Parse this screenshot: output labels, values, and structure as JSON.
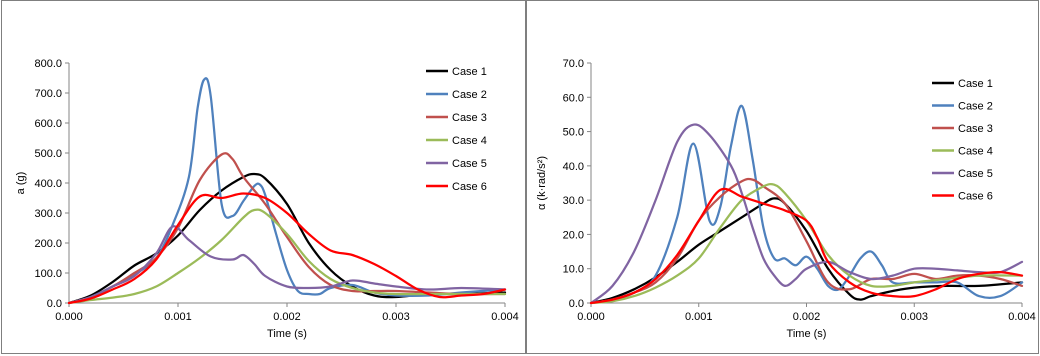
{
  "colors": {
    "Case 1": "#000000",
    "Case 2": "#4f81bd",
    "Case 3": "#c0504d",
    "Case 4": "#9bbb59",
    "Case 5": "#8064a2",
    "Case 6": "#ff0000",
    "axis": "#868686"
  },
  "chart_data": [
    {
      "type": "line",
      "title": "",
      "xlabel": "Time (s)",
      "ylabel": "a (g)",
      "xlim": [
        0,
        0.004
      ],
      "ylim": [
        0,
        800
      ],
      "xticks": [
        0,
        0.001,
        0.002,
        0.003,
        0.004
      ],
      "xtick_labels": [
        "0.000",
        "0.001",
        "0.002",
        "0.003",
        "0.004"
      ],
      "yticks": [
        0,
        100,
        200,
        300,
        400,
        500,
        600,
        700,
        800
      ],
      "ytick_labels": [
        "0.0",
        "100.0",
        "200.0",
        "300.0",
        "400.0",
        "500.0",
        "600.0",
        "700.0",
        "800.0"
      ],
      "grid": false,
      "legend": "right",
      "series": [
        {
          "name": "Case 1",
          "x": [
            0,
            0.0002,
            0.0004,
            0.0006,
            0.0008,
            0.001,
            0.0012,
            0.0014,
            0.0016,
            0.0017,
            0.0018,
            0.002,
            0.0022,
            0.0024,
            0.0026,
            0.0028,
            0.003,
            0.0033,
            0.0036,
            0.004
          ],
          "y": [
            0,
            25,
            70,
            125,
            165,
            225,
            310,
            375,
            420,
            430,
            415,
            330,
            200,
            110,
            55,
            25,
            20,
            30,
            30,
            35
          ]
        },
        {
          "name": "Case 2",
          "x": [
            0,
            0.0002,
            0.0004,
            0.0006,
            0.0008,
            0.00095,
            0.0011,
            0.00118,
            0.00124,
            0.0013,
            0.0014,
            0.0015,
            0.0016,
            0.0017,
            0.00175,
            0.0018,
            0.0019,
            0.002,
            0.0021,
            0.0022,
            0.0023,
            0.0024,
            0.0026,
            0.0028,
            0.003,
            0.0033,
            0.0036,
            0.004
          ],
          "y": [
            0,
            20,
            55,
            95,
            150,
            260,
            420,
            650,
            745,
            690,
            330,
            290,
            340,
            390,
            395,
            360,
            230,
            110,
            40,
            30,
            30,
            50,
            60,
            35,
            25,
            25,
            35,
            45
          ]
        },
        {
          "name": "Case 3",
          "x": [
            0,
            0.0002,
            0.0004,
            0.0006,
            0.0008,
            0.001,
            0.0012,
            0.0014,
            0.0015,
            0.0016,
            0.0018,
            0.002,
            0.0022,
            0.0024,
            0.0026,
            0.0028,
            0.003,
            0.0033,
            0.0036,
            0.004
          ],
          "y": [
            0,
            20,
            55,
            100,
            150,
            250,
            410,
            495,
            480,
            420,
            330,
            220,
            120,
            60,
            40,
            40,
            40,
            35,
            30,
            30
          ]
        },
        {
          "name": "Case 4",
          "x": [
            0,
            0.0002,
            0.0004,
            0.0006,
            0.0008,
            0.001,
            0.0012,
            0.0014,
            0.0016,
            0.0017,
            0.0018,
            0.002,
            0.0022,
            0.0024,
            0.0026,
            0.0028,
            0.003,
            0.0033,
            0.0036,
            0.004
          ],
          "y": [
            0,
            10,
            18,
            30,
            55,
            100,
            150,
            210,
            285,
            310,
            300,
            230,
            140,
            80,
            50,
            35,
            30,
            30,
            30,
            30
          ]
        },
        {
          "name": "Case 5",
          "x": [
            0,
            0.0002,
            0.0004,
            0.0006,
            0.0008,
            0.00095,
            0.0011,
            0.0013,
            0.0015,
            0.0016,
            0.0017,
            0.0018,
            0.002,
            0.0022,
            0.0024,
            0.0026,
            0.0028,
            0.003,
            0.0033,
            0.0036,
            0.004
          ],
          "y": [
            0,
            20,
            55,
            90,
            165,
            255,
            210,
            155,
            145,
            160,
            130,
            90,
            55,
            50,
            55,
            75,
            65,
            55,
            45,
            50,
            45
          ]
        },
        {
          "name": "Case 6",
          "x": [
            0,
            0.0002,
            0.0004,
            0.0006,
            0.0008,
            0.001,
            0.0012,
            0.0014,
            0.0016,
            0.0018,
            0.002,
            0.0022,
            0.0024,
            0.0026,
            0.0028,
            0.003,
            0.0032,
            0.0034,
            0.0036,
            0.0038,
            0.004
          ],
          "y": [
            0,
            15,
            45,
            80,
            145,
            260,
            355,
            350,
            365,
            350,
            300,
            230,
            175,
            160,
            130,
            90,
            45,
            20,
            25,
            30,
            45
          ]
        }
      ]
    },
    {
      "type": "line",
      "title": "",
      "xlabel": "Time (s)",
      "ylabel": "α (k·rad/s²)",
      "xlim": [
        0,
        0.004
      ],
      "ylim": [
        0,
        70
      ],
      "xticks": [
        0,
        0.001,
        0.002,
        0.003,
        0.004
      ],
      "xtick_labels": [
        "0.000",
        "0.001",
        "0.002",
        "0.003",
        "0.004"
      ],
      "yticks": [
        0,
        10,
        20,
        30,
        40,
        50,
        60,
        70
      ],
      "ytick_labels": [
        "0.0",
        "10.0",
        "20.0",
        "30.0",
        "40.0",
        "50.0",
        "60.0",
        "70.0"
      ],
      "grid": false,
      "legend": "right",
      "series": [
        {
          "name": "Case 1",
          "x": [
            0,
            0.0002,
            0.0004,
            0.0006,
            0.0008,
            0.001,
            0.0012,
            0.0014,
            0.0016,
            0.0017,
            0.0018,
            0.002,
            0.0022,
            0.0024,
            0.0025,
            0.0026,
            0.0028,
            0.003,
            0.0033,
            0.0036,
            0.004
          ],
          "y": [
            0,
            1.5,
            4,
            7.5,
            12,
            17,
            21,
            25,
            29,
            30.5,
            29,
            21,
            10,
            2.5,
            1,
            2,
            3.5,
            4.5,
            5,
            5,
            6
          ]
        },
        {
          "name": "Case 2",
          "x": [
            0,
            0.0002,
            0.0004,
            0.0006,
            0.0008,
            0.00095,
            0.0011,
            0.0012,
            0.0013,
            0.0014,
            0.0015,
            0.0016,
            0.0017,
            0.0018,
            0.0019,
            0.002,
            0.0021,
            0.0022,
            0.0023,
            0.0024,
            0.0025,
            0.0026,
            0.0027,
            0.0028,
            0.003,
            0.0032,
            0.0034,
            0.0036,
            0.0038,
            0.004
          ],
          "y": [
            0,
            1,
            3,
            8,
            25,
            46.5,
            24,
            28,
            46,
            57.5,
            42,
            22,
            13,
            13,
            11,
            13.5,
            10,
            5,
            4,
            8,
            13,
            15,
            11,
            6,
            6,
            6,
            6,
            2,
            2,
            6
          ]
        },
        {
          "name": "Case 3",
          "x": [
            0,
            0.0002,
            0.0004,
            0.0006,
            0.0008,
            0.001,
            0.0012,
            0.0014,
            0.0015,
            0.0016,
            0.0018,
            0.002,
            0.0022,
            0.0024,
            0.0026,
            0.0028,
            0.003,
            0.0032,
            0.0034,
            0.0036,
            0.0038,
            0.004
          ],
          "y": [
            0,
            1,
            3,
            6,
            13,
            24,
            31,
            35.5,
            36,
            34,
            29,
            18,
            6,
            4,
            7,
            7,
            8.5,
            7,
            8,
            8,
            7,
            5
          ]
        },
        {
          "name": "Case 4",
          "x": [
            0,
            0.0002,
            0.0004,
            0.0006,
            0.0008,
            0.001,
            0.0012,
            0.0014,
            0.0016,
            0.0017,
            0.0018,
            0.002,
            0.0022,
            0.0024,
            0.0026,
            0.0028,
            0.003,
            0.0033,
            0.0036,
            0.004
          ],
          "y": [
            0,
            0.5,
            2,
            4.5,
            8,
            13,
            22,
            30,
            34,
            34.5,
            32,
            24,
            14,
            8,
            5,
            5,
            6,
            7,
            8,
            8
          ]
        },
        {
          "name": "Case 5",
          "x": [
            0,
            0.0002,
            0.0004,
            0.0006,
            0.0008,
            0.00095,
            0.0011,
            0.0013,
            0.0014,
            0.0015,
            0.0016,
            0.0017,
            0.0018,
            0.0019,
            0.002,
            0.0022,
            0.0024,
            0.0026,
            0.0028,
            0.003,
            0.0032,
            0.0034,
            0.0036,
            0.0038,
            0.004
          ],
          "y": [
            0,
            5,
            15,
            30,
            47,
            52,
            49,
            40,
            32,
            22,
            13,
            8,
            5,
            7,
            10,
            12,
            9,
            7,
            8,
            10,
            10,
            9.5,
            9,
            9,
            12
          ]
        },
        {
          "name": "Case 6",
          "x": [
            0,
            0.0002,
            0.0004,
            0.0006,
            0.0008,
            0.001,
            0.0012,
            0.0014,
            0.0016,
            0.0018,
            0.002,
            0.0021,
            0.0022,
            0.0024,
            0.0026,
            0.0028,
            0.003,
            0.0032,
            0.0034,
            0.0036,
            0.0038,
            0.004
          ],
          "y": [
            0,
            1,
            3,
            7,
            14,
            24,
            33,
            31,
            29,
            27,
            24,
            19,
            12,
            6,
            3,
            2,
            2,
            4,
            7,
            8.5,
            9,
            8
          ]
        }
      ]
    }
  ]
}
